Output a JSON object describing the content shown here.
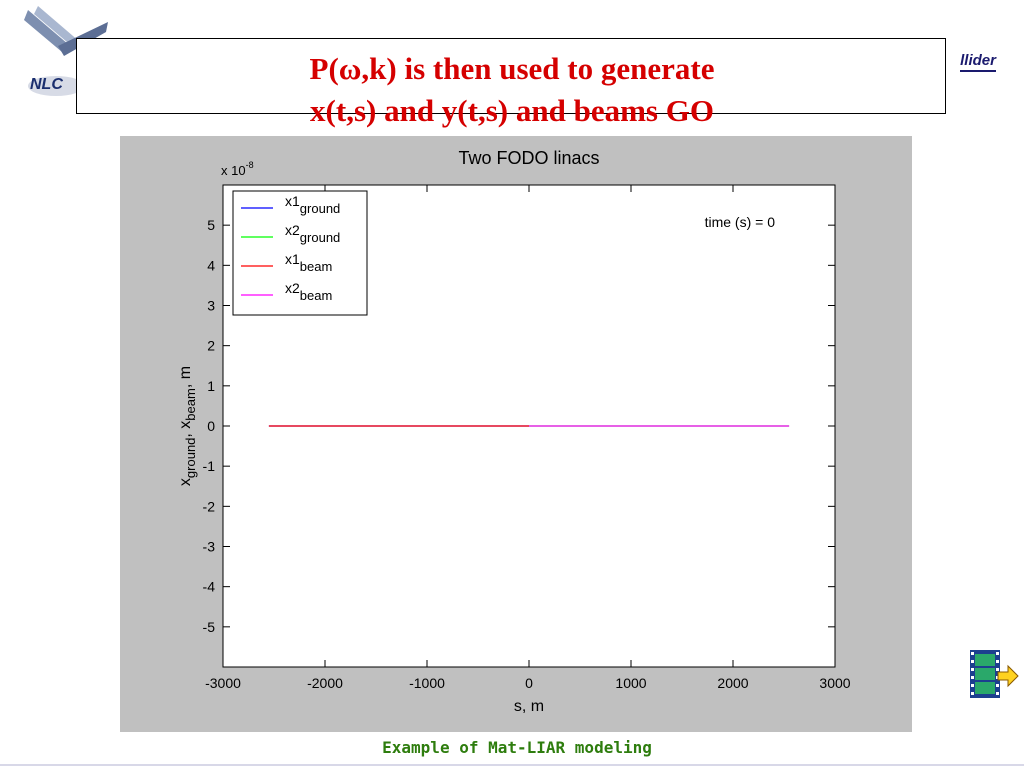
{
  "header": {
    "logo_text": "NLC",
    "collider_text": "llider"
  },
  "slide": {
    "title_line1": "P(ω,k) is then used to generate",
    "title_line2": "x(t,s) and y(t,s) and beams GO",
    "caption": "Example of Mat-LIAR modeling"
  },
  "colors": {
    "title": "#d50000",
    "caption": "#2e7d0e",
    "panel": "#c0c0c0"
  },
  "icons": [
    "nlc-logo-icon",
    "film-forward-icon"
  ],
  "chart_data": {
    "type": "line",
    "title": "Two FODO linacs",
    "xlabel": "s, m",
    "ylabel_parts": {
      "base1": "x",
      "sub1": "ground",
      "sep": ", ",
      "base2": "x",
      "sub2": "beam",
      "unit": ", m"
    },
    "y_exponent_label": {
      "prefix": "x 10",
      "exp": "-8"
    },
    "xlim": [
      -3000,
      3000
    ],
    "ylim": [
      -6,
      6
    ],
    "xticks": [
      -3000,
      -2000,
      -1000,
      0,
      1000,
      2000,
      3000
    ],
    "yticks": [
      -5,
      -4,
      -3,
      -2,
      -1,
      0,
      1,
      2,
      3,
      4,
      5
    ],
    "ytick_labels": [
      "-5",
      "-4",
      "-3",
      "-2",
      "-1",
      "0",
      "1",
      "2",
      "3",
      "4",
      "5"
    ],
    "grid": false,
    "legend_position": "top-left",
    "annotation": "time (s) = 0",
    "series": [
      {
        "name": "x1",
        "sub": "ground",
        "color": "#0000ff",
        "x": [
          -2550,
          0
        ],
        "y": [
          0,
          0
        ]
      },
      {
        "name": "x2",
        "sub": "ground",
        "color": "#00ff00",
        "x": [
          0,
          2550
        ],
        "y": [
          0,
          0
        ]
      },
      {
        "name": "x1",
        "sub": "beam",
        "color": "#ff0000",
        "x": [
          -2550,
          0
        ],
        "y": [
          0,
          0
        ]
      },
      {
        "name": "x2",
        "sub": "beam",
        "color": "#ff00ff",
        "x": [
          0,
          2550
        ],
        "y": [
          0,
          0
        ]
      }
    ]
  }
}
